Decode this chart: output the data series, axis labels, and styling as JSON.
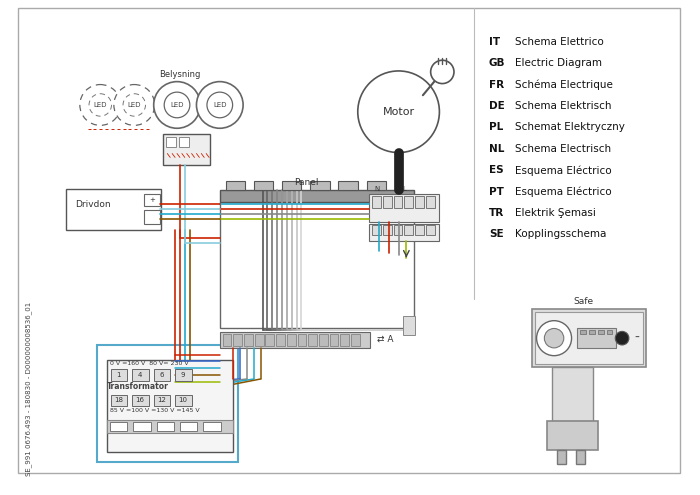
{
  "bg_color": "#ffffff",
  "legend_entries": [
    [
      "IT",
      "Schema Elettrico"
    ],
    [
      "GB",
      "Electric Diagram"
    ],
    [
      "FR",
      "Schéma Electrique"
    ],
    [
      "DE",
      "Schema Elektrisch"
    ],
    [
      "PL",
      "Schemat Elektryczny"
    ],
    [
      "NL",
      "Schema Electrisch"
    ],
    [
      "ES",
      "Esquema Eléctrico"
    ],
    [
      "PT",
      "Esquema Eléctrico"
    ],
    [
      "TR",
      "Elektrik Şemasi"
    ],
    [
      "SE",
      "Kopplingsschema"
    ]
  ],
  "side_text": "SE_991 0676.493 - 180830 - D000000008536_01",
  "labels": {
    "belysning": "Belysning",
    "panel": "Panel",
    "drivdon": "Drivdon",
    "transformator": "Transformator",
    "motor": "Motor",
    "safe": "Safe"
  },
  "colors": {
    "red": "#cc2200",
    "blue": "#3366cc",
    "gray": "#888888",
    "cyan": "#22aacc",
    "brown": "#885500",
    "yellow_green": "#99bb00",
    "black": "#222222",
    "light_blue": "#88ccdd",
    "dark_gray": "#555555",
    "mid_gray": "#999999",
    "panel_gray": "#aaaaaa",
    "teal": "#009999"
  }
}
